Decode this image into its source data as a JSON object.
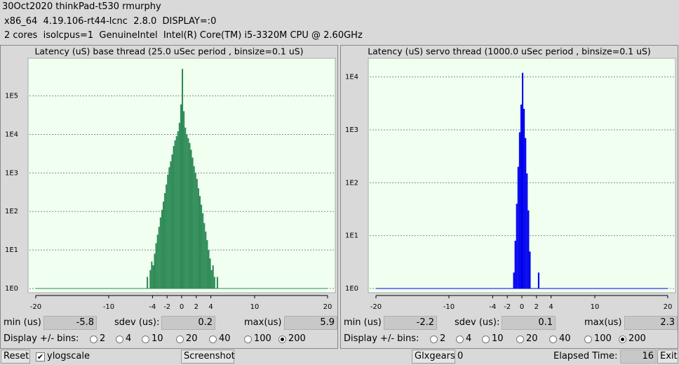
{
  "header": {
    "lines": [
      "30Oct2020 thinkPad-t530 rmurphy",
      "x86_64  4.19.106-rt44-lcnc  2.8.0  DISPLAY=:0",
      "2 cores  isolcpus=1  GenuineIntel  Intel(R) Core(TM) i5-3320M CPU @ 2.60GHz"
    ]
  },
  "chart_data": [
    {
      "type": "histogram",
      "title": "Latency (uS) base thread (25.0 uSec period , binsize=0.1 uS)",
      "color": "#2e8b57",
      "log_scale": true,
      "grid": true,
      "bins": [
        -6,
        -5.8,
        -5.6,
        -5.4,
        -5.2,
        -5,
        -4.8,
        -4.6,
        -4.4,
        -4.2,
        -4,
        -3.8,
        -3.6,
        -3.4,
        -3.2,
        -3,
        -2.8,
        -2.6,
        -2.4,
        -2.2,
        -2,
        -1.8,
        -1.6,
        -1.4,
        -1.2,
        -1,
        -0.8,
        -0.6,
        -0.4,
        -0.2,
        0,
        0.2,
        0.4,
        0.6,
        0.8,
        1,
        1.2,
        1.4,
        1.6,
        1.8,
        2,
        2.2,
        2.4,
        2.6,
        2.8,
        3,
        3.2,
        3.4,
        3.6,
        3.8,
        4,
        4.2,
        4.4,
        4.6,
        4.8,
        5,
        5.2,
        5.4,
        5.6,
        5.8,
        6
      ],
      "values": [
        0,
        1,
        0,
        0,
        1,
        0,
        2,
        1,
        3,
        5,
        4,
        8,
        15,
        25,
        40,
        70,
        110,
        180,
        300,
        500,
        900,
        1400,
        2000,
        3000,
        5000,
        7000,
        9000,
        12000,
        20000,
        60000,
        500000,
        40000,
        15000,
        10000,
        8000,
        6000,
        4000,
        2500,
        1500,
        1000,
        700,
        400,
        250,
        150,
        90,
        50,
        30,
        18,
        10,
        6,
        3,
        4,
        2,
        1,
        2,
        0,
        1,
        0,
        0,
        1
      ],
      "xlim": [
        -20,
        20
      ],
      "xticks": [
        -20,
        -10,
        -4,
        -2,
        0,
        2,
        4,
        10,
        20
      ],
      "ylim": [
        1,
        800000
      ],
      "yticks": [
        {
          "value": 1,
          "label": "1E0"
        },
        {
          "value": 10,
          "label": "1E1"
        },
        {
          "value": 100,
          "label": "1E2"
        },
        {
          "value": 1000,
          "label": "1E3"
        },
        {
          "value": 10000,
          "label": "1E4"
        },
        {
          "value": 100000,
          "label": "1E5"
        }
      ]
    },
    {
      "type": "histogram",
      "title": "Latency (uS) servo thread (1000.0 uSec period , binsize=0.1 uS)",
      "color": "#0000ee",
      "log_scale": true,
      "grid": true,
      "bins": [
        -2.4,
        -2.2,
        -2,
        -1.8,
        -1.6,
        -1.4,
        -1.2,
        -1,
        -0.8,
        -0.6,
        -0.4,
        -0.2,
        0,
        0.2,
        0.4,
        0.6,
        0.8,
        1,
        1.2,
        1.4,
        1.6,
        1.8,
        2,
        2.2,
        2.4
      ],
      "values": [
        0,
        1,
        0,
        0,
        1,
        0,
        2,
        8,
        40,
        200,
        900,
        3000,
        12000,
        2500,
        700,
        150,
        30,
        5,
        1,
        0,
        0,
        0,
        0,
        2
      ],
      "xlim": [
        -20,
        20
      ],
      "xticks": [
        -20,
        -10,
        -4,
        -2,
        0,
        2,
        4,
        10,
        20
      ],
      "ylim": [
        1,
        20000
      ],
      "yticks": [
        {
          "value": 1,
          "label": "1E0"
        },
        {
          "value": 10,
          "label": "1E1"
        },
        {
          "value": 100,
          "label": "1E2"
        },
        {
          "value": 1000,
          "label": "1E3"
        },
        {
          "value": 10000,
          "label": "1E4"
        }
      ]
    }
  ],
  "panels": [
    {
      "min_label": "min (us)",
      "min": -5.8,
      "sdev_label": "sdev (us):",
      "sdev": 0.2,
      "max_label": "max(us)",
      "max": 5.9,
      "bins_label": "Display +/- bins:",
      "bin_options": [
        2,
        4,
        10,
        20,
        40,
        100,
        200
      ],
      "selected": 200
    },
    {
      "min_label": "min (us)",
      "min": -2.2,
      "sdev_label": "sdev (us):",
      "sdev": 0.1,
      "max_label": "max(us)",
      "max": 2.3,
      "bins_label": "Display +/- bins:",
      "bin_options": [
        2,
        4,
        10,
        20,
        40,
        100,
        200
      ],
      "selected": 200
    }
  ],
  "footer": {
    "reset": "Reset",
    "ylogscale": "ylogscale",
    "ylogscale_checked": true,
    "screenshot": "Screenshot",
    "glxgears": "Glxgears",
    "glxgears_count": 0,
    "elapsed_label": "Elapsed Time:",
    "elapsed": 16,
    "exit": "Exit"
  }
}
